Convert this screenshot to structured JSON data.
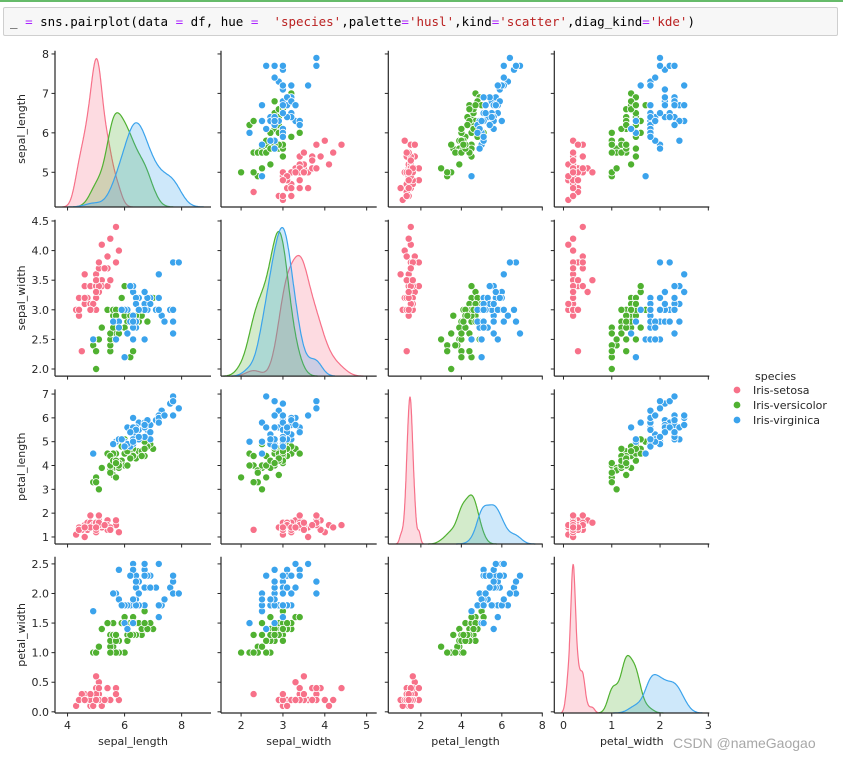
{
  "notebook": {
    "code_tokens": [
      {
        "t": "_ ",
        "k": "plain"
      },
      {
        "t": "=",
        "k": "op"
      },
      {
        "t": " sns.pairplot(data ",
        "k": "plain"
      },
      {
        "t": "=",
        "k": "op"
      },
      {
        "t": " df, hue ",
        "k": "plain"
      },
      {
        "t": "=",
        "k": "op"
      },
      {
        "t": "  ",
        "k": "plain"
      },
      {
        "t": "'species'",
        "k": "str"
      },
      {
        "t": ",palette",
        "k": "plain"
      },
      {
        "t": "=",
        "k": "op"
      },
      {
        "t": "'husl'",
        "k": "str"
      },
      {
        "t": ",kind",
        "k": "plain"
      },
      {
        "t": "=",
        "k": "op"
      },
      {
        "t": "'scatter'",
        "k": "str"
      },
      {
        "t": ",diag_kind",
        "k": "plain"
      },
      {
        "t": "=",
        "k": "op"
      },
      {
        "t": "'kde'",
        "k": "str"
      },
      {
        "t": ")",
        "k": "plain"
      }
    ]
  },
  "watermark": "CSDN @nameGaogao",
  "chart_data": {
    "type": "scatter",
    "subtype": "pairplot",
    "diag_kind": "kde",
    "grid": false,
    "legend": {
      "title": "species",
      "placement": "right"
    },
    "variables": [
      {
        "name": "sepal_length",
        "x_range": [
          3.56,
          9.03
        ],
        "y_range": [
          4.12,
          8.08
        ],
        "x_ticks": [
          "4",
          "6",
          "8"
        ],
        "y_ticks": [
          "5",
          "6",
          "7",
          "8"
        ]
      },
      {
        "name": "sepal_width",
        "x_range": [
          1.52,
          5.24
        ],
        "y_range": [
          1.88,
          4.52
        ],
        "x_ticks": [
          "2",
          "3",
          "4",
          "5"
        ],
        "y_ticks": [
          "2.0",
          "2.5",
          "3.0",
          "3.5",
          "4.0",
          "4.5"
        ]
      },
      {
        "name": "petal_length",
        "x_range": [
          0.39,
          8.02
        ],
        "y_range": [
          0.705,
          7.195
        ],
        "x_ticks": [
          "2",
          "4",
          "6",
          "8"
        ],
        "y_ticks": [
          "1",
          "2",
          "3",
          "4",
          "5",
          "6",
          "7"
        ]
      },
      {
        "name": "petal_width",
        "x_range": [
          -0.19,
          3.02
        ],
        "y_range": [
          -0.02,
          2.62
        ],
        "x_ticks": [
          "0",
          "1",
          "2",
          "3"
        ],
        "y_ticks": [
          "0.0",
          "0.5",
          "1.0",
          "1.5",
          "2.0",
          "2.5"
        ]
      }
    ],
    "series": [
      {
        "name": "Iris-setosa",
        "color": "#f77189",
        "points": [
          [
            5.1,
            3.5,
            1.4,
            0.2
          ],
          [
            4.9,
            3.0,
            1.4,
            0.2
          ],
          [
            4.7,
            3.2,
            1.3,
            0.2
          ],
          [
            4.6,
            3.1,
            1.5,
            0.2
          ],
          [
            5.0,
            3.6,
            1.4,
            0.2
          ],
          [
            5.4,
            3.9,
            1.7,
            0.4
          ],
          [
            4.6,
            3.4,
            1.4,
            0.3
          ],
          [
            5.0,
            3.4,
            1.5,
            0.2
          ],
          [
            4.4,
            2.9,
            1.4,
            0.2
          ],
          [
            4.9,
            3.1,
            1.5,
            0.1
          ],
          [
            5.4,
            3.7,
            1.5,
            0.2
          ],
          [
            4.8,
            3.4,
            1.6,
            0.2
          ],
          [
            4.8,
            3.0,
            1.4,
            0.1
          ],
          [
            4.3,
            3.0,
            1.1,
            0.1
          ],
          [
            5.8,
            4.0,
            1.2,
            0.2
          ],
          [
            5.7,
            4.4,
            1.5,
            0.4
          ],
          [
            5.4,
            3.9,
            1.3,
            0.4
          ],
          [
            5.1,
            3.5,
            1.4,
            0.3
          ],
          [
            5.7,
            3.8,
            1.7,
            0.3
          ],
          [
            5.1,
            3.8,
            1.5,
            0.3
          ],
          [
            5.4,
            3.4,
            1.7,
            0.2
          ],
          [
            5.1,
            3.7,
            1.5,
            0.4
          ],
          [
            4.6,
            3.6,
            1.0,
            0.2
          ],
          [
            5.1,
            3.3,
            1.7,
            0.5
          ],
          [
            4.8,
            3.4,
            1.9,
            0.2
          ],
          [
            5.0,
            3.0,
            1.6,
            0.2
          ],
          [
            5.0,
            3.4,
            1.6,
            0.4
          ],
          [
            5.2,
            3.5,
            1.5,
            0.2
          ],
          [
            5.2,
            3.4,
            1.4,
            0.2
          ],
          [
            4.7,
            3.2,
            1.6,
            0.2
          ],
          [
            4.8,
            3.1,
            1.6,
            0.2
          ],
          [
            5.4,
            3.4,
            1.5,
            0.4
          ],
          [
            5.2,
            4.1,
            1.5,
            0.1
          ],
          [
            5.5,
            4.2,
            1.4,
            0.2
          ],
          [
            4.9,
            3.1,
            1.5,
            0.1
          ],
          [
            5.0,
            3.2,
            1.2,
            0.2
          ],
          [
            5.5,
            3.5,
            1.3,
            0.2
          ],
          [
            4.9,
            3.1,
            1.5,
            0.1
          ],
          [
            4.4,
            3.0,
            1.3,
            0.2
          ],
          [
            5.1,
            3.4,
            1.5,
            0.2
          ],
          [
            5.0,
            3.5,
            1.3,
            0.3
          ],
          [
            4.5,
            2.3,
            1.3,
            0.3
          ],
          [
            4.4,
            3.2,
            1.3,
            0.2
          ],
          [
            5.0,
            3.5,
            1.6,
            0.6
          ],
          [
            5.1,
            3.8,
            1.9,
            0.4
          ],
          [
            4.8,
            3.0,
            1.4,
            0.3
          ],
          [
            5.1,
            3.8,
            1.6,
            0.2
          ],
          [
            4.6,
            3.2,
            1.4,
            0.2
          ],
          [
            5.3,
            3.7,
            1.5,
            0.2
          ],
          [
            5.0,
            3.3,
            1.4,
            0.2
          ]
        ]
      },
      {
        "name": "Iris-versicolor",
        "color": "#50b131",
        "points": [
          [
            7.0,
            3.2,
            4.7,
            1.4
          ],
          [
            6.4,
            3.2,
            4.5,
            1.5
          ],
          [
            6.9,
            3.1,
            4.9,
            1.5
          ],
          [
            5.5,
            2.3,
            4.0,
            1.3
          ],
          [
            6.5,
            2.8,
            4.6,
            1.5
          ],
          [
            5.7,
            2.8,
            4.5,
            1.3
          ],
          [
            6.3,
            3.3,
            4.7,
            1.6
          ],
          [
            4.9,
            2.4,
            3.3,
            1.0
          ],
          [
            6.6,
            2.9,
            4.6,
            1.3
          ],
          [
            5.2,
            2.7,
            3.9,
            1.4
          ],
          [
            5.0,
            2.0,
            3.5,
            1.0
          ],
          [
            5.9,
            3.0,
            4.2,
            1.5
          ],
          [
            6.0,
            2.2,
            4.0,
            1.0
          ],
          [
            6.1,
            2.9,
            4.7,
            1.4
          ],
          [
            5.6,
            2.9,
            3.6,
            1.3
          ],
          [
            6.7,
            3.1,
            4.4,
            1.4
          ],
          [
            5.6,
            3.0,
            4.5,
            1.5
          ],
          [
            5.8,
            2.7,
            4.1,
            1.0
          ],
          [
            6.2,
            2.2,
            4.5,
            1.5
          ],
          [
            5.6,
            2.5,
            3.9,
            1.1
          ],
          [
            5.9,
            3.2,
            4.8,
            1.8
          ],
          [
            6.1,
            2.8,
            4.0,
            1.3
          ],
          [
            6.3,
            2.5,
            4.9,
            1.5
          ],
          [
            6.1,
            2.8,
            4.7,
            1.2
          ],
          [
            6.4,
            2.9,
            4.3,
            1.3
          ],
          [
            6.6,
            3.0,
            4.4,
            1.4
          ],
          [
            6.8,
            2.8,
            4.8,
            1.4
          ],
          [
            6.7,
            3.0,
            5.0,
            1.7
          ],
          [
            6.0,
            2.9,
            4.5,
            1.5
          ],
          [
            5.7,
            2.6,
            3.5,
            1.0
          ],
          [
            5.5,
            2.4,
            3.8,
            1.1
          ],
          [
            5.5,
            2.4,
            3.7,
            1.0
          ],
          [
            5.8,
            2.7,
            3.9,
            1.2
          ],
          [
            6.0,
            2.7,
            5.1,
            1.6
          ],
          [
            5.4,
            3.0,
            4.5,
            1.5
          ],
          [
            6.0,
            3.4,
            4.5,
            1.6
          ],
          [
            6.7,
            3.1,
            4.7,
            1.5
          ],
          [
            6.3,
            2.3,
            4.4,
            1.3
          ],
          [
            5.6,
            3.0,
            4.1,
            1.3
          ],
          [
            5.5,
            2.5,
            4.0,
            1.3
          ],
          [
            5.5,
            2.6,
            4.4,
            1.2
          ],
          [
            6.1,
            3.0,
            4.6,
            1.4
          ],
          [
            5.8,
            2.6,
            4.0,
            1.2
          ],
          [
            5.0,
            2.3,
            3.3,
            1.0
          ],
          [
            5.6,
            2.7,
            4.2,
            1.3
          ],
          [
            5.7,
            3.0,
            4.2,
            1.2
          ],
          [
            5.7,
            2.9,
            4.2,
            1.3
          ],
          [
            6.2,
            2.9,
            4.3,
            1.3
          ],
          [
            5.1,
            2.5,
            3.0,
            1.1
          ],
          [
            5.7,
            2.8,
            4.1,
            1.3
          ]
        ]
      },
      {
        "name": "Iris-virginica",
        "color": "#3ba3ec",
        "points": [
          [
            6.3,
            3.3,
            6.0,
            2.5
          ],
          [
            5.8,
            2.7,
            5.1,
            1.9
          ],
          [
            7.1,
            3.0,
            5.9,
            2.1
          ],
          [
            6.3,
            2.9,
            5.6,
            1.8
          ],
          [
            6.5,
            3.0,
            5.8,
            2.2
          ],
          [
            7.6,
            3.0,
            6.6,
            2.1
          ],
          [
            4.9,
            2.5,
            4.5,
            1.7
          ],
          [
            7.3,
            2.9,
            6.3,
            1.8
          ],
          [
            6.7,
            2.5,
            5.8,
            1.8
          ],
          [
            7.2,
            3.6,
            6.1,
            2.5
          ],
          [
            6.5,
            3.2,
            5.1,
            2.0
          ],
          [
            6.4,
            2.7,
            5.3,
            1.9
          ],
          [
            6.8,
            3.0,
            5.5,
            2.1
          ],
          [
            5.7,
            2.5,
            5.0,
            2.0
          ],
          [
            5.8,
            2.8,
            5.1,
            2.4
          ],
          [
            6.4,
            3.2,
            5.3,
            2.3
          ],
          [
            6.5,
            3.0,
            5.5,
            1.8
          ],
          [
            7.7,
            3.8,
            6.7,
            2.2
          ],
          [
            7.7,
            2.6,
            6.9,
            2.3
          ],
          [
            6.0,
            2.2,
            5.0,
            1.5
          ],
          [
            6.9,
            3.2,
            5.7,
            2.3
          ],
          [
            5.6,
            2.8,
            4.9,
            2.0
          ],
          [
            7.7,
            2.8,
            6.7,
            2.0
          ],
          [
            6.3,
            2.7,
            4.9,
            1.8
          ],
          [
            6.7,
            3.3,
            5.7,
            2.1
          ],
          [
            7.2,
            3.2,
            6.0,
            1.8
          ],
          [
            6.2,
            2.8,
            4.8,
            1.8
          ],
          [
            6.1,
            3.0,
            4.9,
            1.8
          ],
          [
            6.4,
            2.8,
            5.6,
            2.1
          ],
          [
            7.2,
            3.0,
            5.8,
            1.6
          ],
          [
            7.4,
            2.8,
            6.1,
            1.9
          ],
          [
            7.9,
            3.8,
            6.4,
            2.0
          ],
          [
            6.4,
            2.8,
            5.6,
            2.2
          ],
          [
            6.3,
            2.8,
            5.1,
            1.5
          ],
          [
            6.1,
            2.6,
            5.6,
            1.4
          ],
          [
            7.7,
            3.0,
            6.1,
            2.3
          ],
          [
            6.3,
            3.4,
            5.6,
            2.4
          ],
          [
            6.4,
            3.1,
            5.5,
            1.8
          ],
          [
            6.0,
            3.0,
            4.8,
            1.8
          ],
          [
            6.9,
            3.1,
            5.4,
            2.1
          ],
          [
            6.7,
            3.1,
            5.6,
            2.4
          ],
          [
            6.9,
            3.1,
            5.1,
            2.3
          ],
          [
            5.8,
            2.7,
            5.1,
            1.9
          ],
          [
            6.8,
            3.2,
            5.9,
            2.3
          ],
          [
            6.7,
            3.3,
            5.7,
            2.5
          ],
          [
            6.7,
            3.0,
            5.2,
            2.3
          ],
          [
            6.3,
            2.5,
            5.0,
            1.9
          ],
          [
            6.5,
            3.0,
            5.2,
            2.0
          ],
          [
            6.2,
            3.4,
            5.4,
            2.3
          ],
          [
            5.9,
            3.0,
            5.1,
            1.8
          ]
        ]
      }
    ]
  }
}
